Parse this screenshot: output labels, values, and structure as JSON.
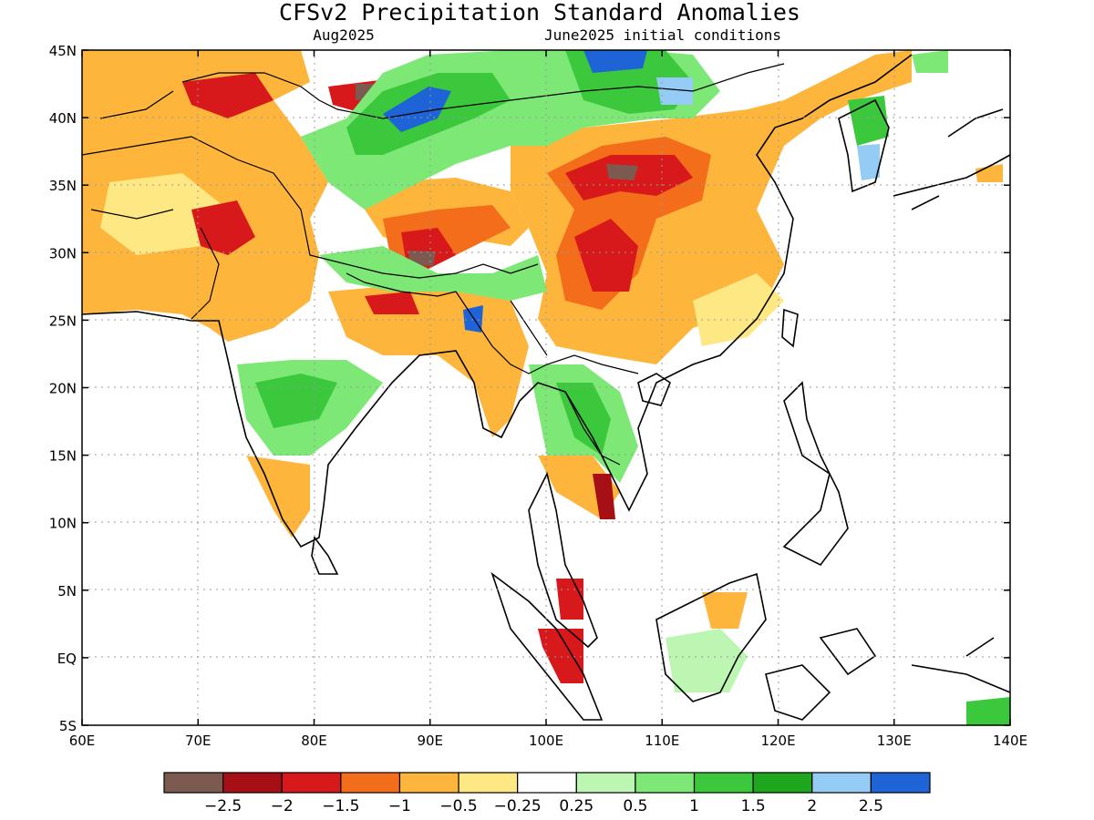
{
  "map": {
    "title": "CFSv2 Precipitation Standard Anomalies",
    "subtitle_left": "Aug2025",
    "subtitle_right": "June2025 initial conditions",
    "lat_labels": [
      "45N",
      "40N",
      "35N",
      "30N",
      "25N",
      "20N",
      "15N",
      "10N",
      "5N",
      "EQ",
      "5S"
    ],
    "lon_labels": [
      "60E",
      "70E",
      "80E",
      "90E",
      "100E",
      "110E",
      "120E",
      "130E",
      "140E"
    ],
    "lat_range": [
      -5,
      45
    ],
    "lon_range": [
      60,
      140
    ],
    "gridlines": "dotted"
  },
  "colorbar": {
    "colors": [
      "#7d5a50",
      "#a50f15",
      "#d7191c",
      "#f46d1a",
      "#fdb53c",
      "#fee883",
      "#ffffff",
      "#bdf5b3",
      "#7de876",
      "#3cc83c",
      "#1ea61e",
      "#94ccf5",
      "#1e64d6"
    ],
    "labels": [
      "-2.5",
      "-2",
      "-1.5",
      "-1",
      "-0.5",
      "-0.25",
      "0.25",
      "0.5",
      "1",
      "1.5",
      "2",
      "2.5"
    ]
  }
}
